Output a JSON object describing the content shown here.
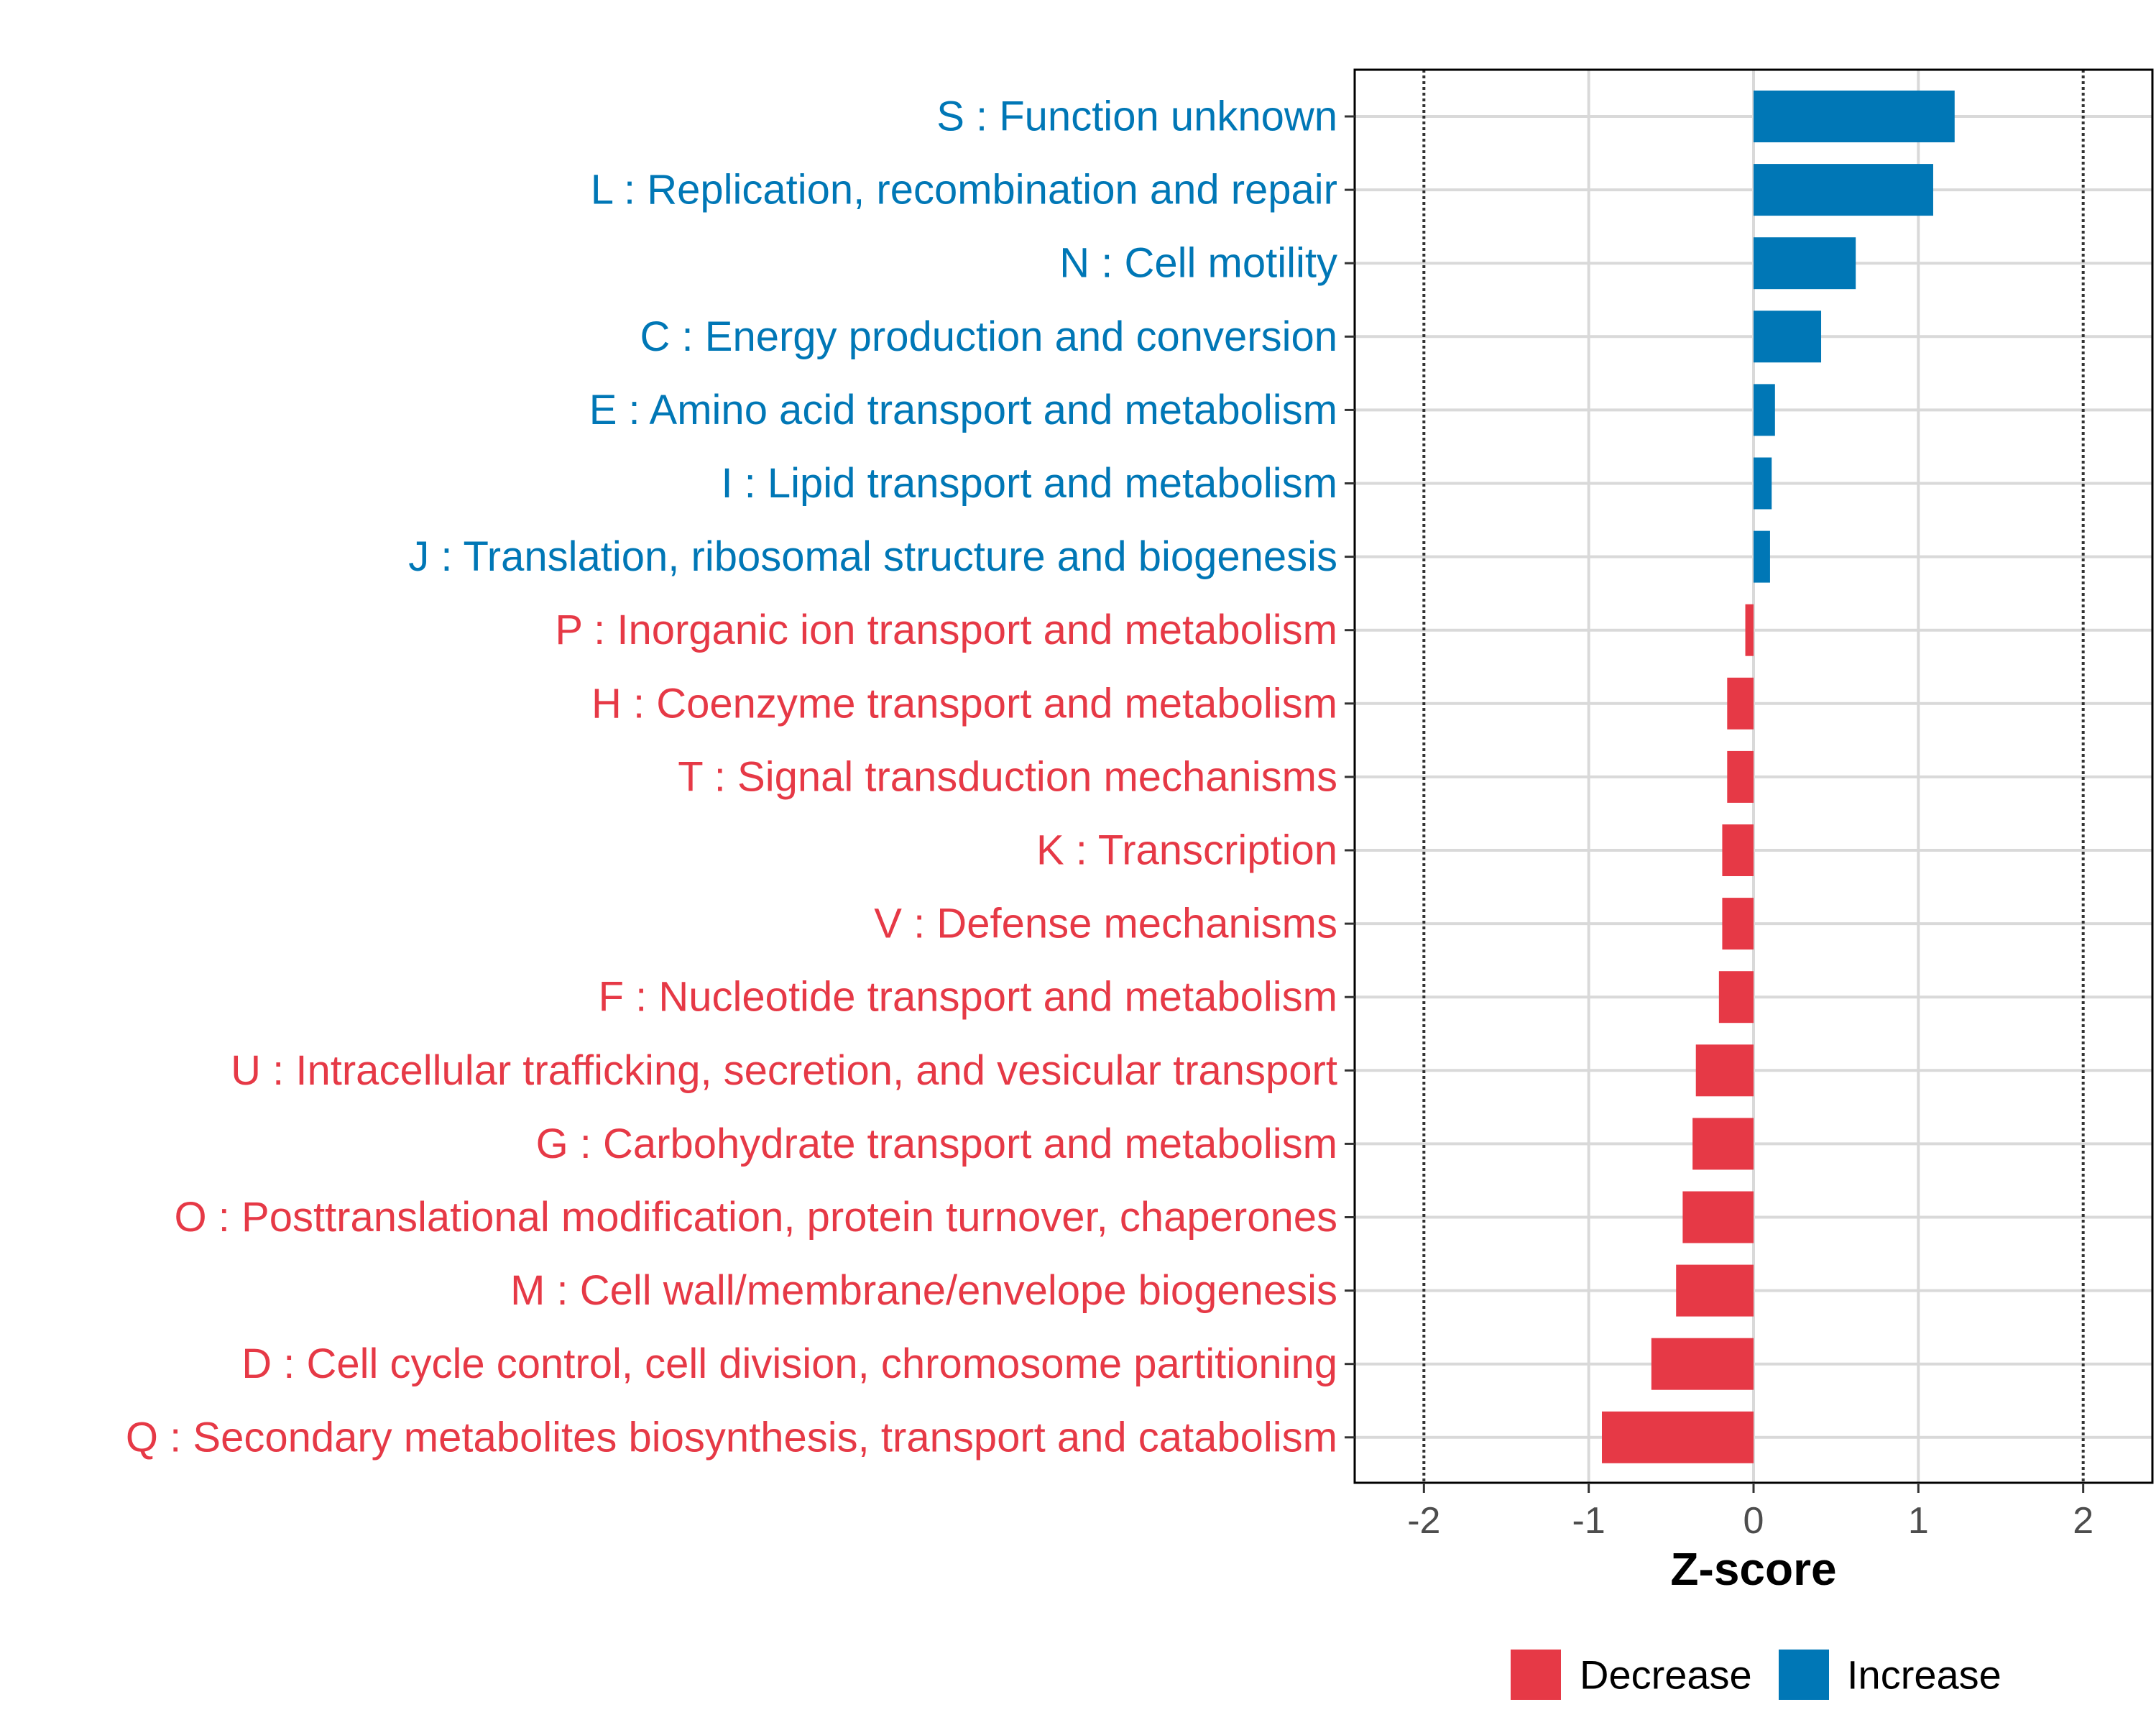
{
  "chart_data": {
    "type": "bar",
    "orientation": "horizontal",
    "xlabel": "Z-score",
    "xlim": [
      -2.42,
      2.42
    ],
    "x_ticks": [
      -2,
      -1,
      0,
      1,
      2
    ],
    "x_tick_labels": [
      "-2",
      "-1",
      "0",
      "1",
      "2"
    ],
    "reference_lines": [
      -2,
      2
    ],
    "grid": true,
    "legend": {
      "position": "bottom",
      "entries": [
        {
          "label": "Decrease",
          "color": "#E63946"
        },
        {
          "label": "Increase",
          "color": "#0077B6"
        }
      ]
    },
    "colors": {
      "Decrease": "#E63946",
      "Increase": "#0077B6"
    },
    "categories": [
      {
        "label": "S : Function unknown",
        "value": 1.22,
        "direction": "Increase"
      },
      {
        "label": "L : Replication, recombination and repair",
        "value": 1.09,
        "direction": "Increase"
      },
      {
        "label": "N : Cell motility",
        "value": 0.62,
        "direction": "Increase"
      },
      {
        "label": "C : Energy production and conversion",
        "value": 0.41,
        "direction": "Increase"
      },
      {
        "label": "E : Amino acid transport and metabolism",
        "value": 0.13,
        "direction": "Increase"
      },
      {
        "label": "I : Lipid transport and metabolism",
        "value": 0.11,
        "direction": "Increase"
      },
      {
        "label": "J : Translation, ribosomal structure and biogenesis",
        "value": 0.1,
        "direction": "Increase"
      },
      {
        "label": "P : Inorganic ion transport and metabolism",
        "value": -0.05,
        "direction": "Decrease"
      },
      {
        "label": "H : Coenzyme transport and metabolism",
        "value": -0.16,
        "direction": "Decrease"
      },
      {
        "label": "T : Signal transduction mechanisms",
        "value": -0.16,
        "direction": "Decrease"
      },
      {
        "label": "K : Transcription",
        "value": -0.19,
        "direction": "Decrease"
      },
      {
        "label": "V : Defense mechanisms",
        "value": -0.19,
        "direction": "Decrease"
      },
      {
        "label": "F : Nucleotide transport and metabolism",
        "value": -0.21,
        "direction": "Decrease"
      },
      {
        "label": "U : Intracellular trafficking, secretion, and vesicular transport",
        "value": -0.35,
        "direction": "Decrease"
      },
      {
        "label": "G : Carbohydrate transport and metabolism",
        "value": -0.37,
        "direction": "Decrease"
      },
      {
        "label": "O : Posttranslational modification, protein turnover, chaperones",
        "value": -0.43,
        "direction": "Decrease"
      },
      {
        "label": "M : Cell wall/membrane/envelope biogenesis",
        "value": -0.47,
        "direction": "Decrease"
      },
      {
        "label": "D : Cell cycle control, cell division, chromosome partitioning",
        "value": -0.62,
        "direction": "Decrease"
      },
      {
        "label": "Q : Secondary metabolites biosynthesis, transport and catabolism",
        "value": -0.92,
        "direction": "Decrease"
      }
    ]
  }
}
